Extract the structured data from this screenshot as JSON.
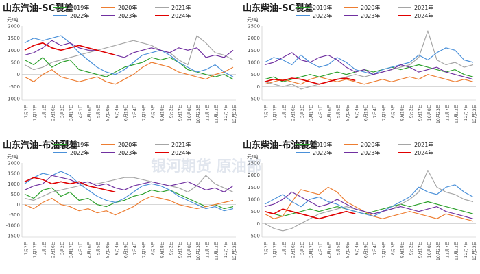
{
  "colors": {
    "2019": "#2ca02c",
    "2020": "#ed7d31",
    "2021": "#a5a5a5",
    "2022": "#4a90d9",
    "2023": "#7030a0",
    "2024": "#e00000"
  },
  "watermark": "银河期货 原油部",
  "chart_data": [
    {
      "type": "line",
      "title": "山东汽油-SC裂差",
      "ylabel": "元/吨",
      "ylim": [
        -1000,
        2000
      ],
      "yticks": [
        "2000",
        "1500",
        "1000",
        "500",
        "0",
        "-500",
        "-1000"
      ],
      "xticks": [
        "1月2日",
        "1月17日",
        "2月1日",
        "2月16日",
        "3月2日",
        "3月17日",
        "4月1日",
        "4月16日",
        "5月5日",
        "5月20日",
        "6月4日",
        "6月19日",
        "7月4日",
        "7月19日",
        "8月3日",
        "8月18日",
        "9月2日",
        "9月17日",
        "10月8日",
        "10月23日",
        "11月7日",
        "11月22日",
        "12月7日",
        "12月22日"
      ],
      "series": [
        {
          "name": "2019年",
          "values": [
            600,
            400,
            700,
            300,
            500,
            600,
            200,
            100,
            0,
            -100,
            100,
            300,
            400,
            500,
            700,
            600,
            700,
            500,
            200,
            100,
            0,
            -100,
            0,
            -200
          ]
        },
        {
          "name": "2020年",
          "values": [
            -100,
            -300,
            0,
            200,
            -100,
            -200,
            -300,
            -200,
            -100,
            -300,
            -400,
            -200,
            0,
            300,
            500,
            400,
            300,
            100,
            0,
            -100,
            -200,
            0,
            100,
            300
          ]
        },
        {
          "name": "2021年",
          "values": [
            400,
            200,
            300,
            500,
            600,
            700,
            800,
            900,
            1000,
            1100,
            1200,
            1300,
            1400,
            1300,
            1200,
            1000,
            900,
            600,
            400,
            1600,
            1300,
            900,
            800,
            600
          ]
        },
        {
          "name": "2022年",
          "values": [
            1300,
            1500,
            1400,
            1500,
            1600,
            1300,
            900,
            600,
            300,
            100,
            0,
            200,
            500,
            800,
            900,
            1000,
            800,
            500,
            300,
            100,
            200,
            400,
            100,
            -100
          ]
        },
        {
          "name": "2023年",
          "values": [
            800,
            900,
            1100,
            1400,
            1200,
            1300,
            1100,
            1000,
            1000,
            900,
            800,
            700,
            900,
            1000,
            1100,
            1000,
            900,
            1100,
            1000,
            1100,
            700,
            800,
            700,
            1000
          ]
        },
        {
          "name": "2024年",
          "values": [
            1000,
            1200,
            1300,
            1100,
            1000,
            1100,
            1200,
            1100,
            1000,
            900,
            800
          ]
        }
      ]
    },
    {
      "type": "line",
      "title": "山东柴油-SC裂差",
      "ylabel": "元/吨",
      "ylim": [
        -500,
        2500
      ],
      "yticks": [
        "2500",
        "2000",
        "1500",
        "1000",
        "500",
        "0",
        "-500"
      ],
      "xticks": [
        "1月2日",
        "1月17日",
        "2月1日",
        "2月16日",
        "3月2日",
        "3月17日",
        "4月1日",
        "4月16日",
        "5月5日",
        "5月20日",
        "6月4日",
        "6月19日",
        "7月4日",
        "7月19日",
        "8月3日",
        "8月18日",
        "9月2日",
        "9月17日",
        "10月8日",
        "10月23日",
        "11月7日",
        "11月22日",
        "12月7日",
        "12月22日"
      ],
      "series": [
        {
          "name": "2019年",
          "values": [
            300,
            400,
            200,
            300,
            400,
            500,
            400,
            500,
            600,
            500,
            600,
            700,
            600,
            700,
            800,
            700,
            800,
            900,
            800,
            700,
            600,
            700,
            500,
            400
          ]
        },
        {
          "name": "2020年",
          "values": [
            100,
            200,
            300,
            200,
            100,
            300,
            400,
            300,
            200,
            300,
            200,
            100,
            200,
            300,
            200,
            300,
            400,
            300,
            500,
            400,
            300,
            200,
            300,
            200
          ]
        },
        {
          "name": "2021年",
          "values": [
            200,
            100,
            0,
            100,
            -100,
            0,
            100,
            200,
            300,
            400,
            500,
            400,
            500,
            600,
            700,
            800,
            900,
            1200,
            2300,
            1100,
            900,
            1000,
            800,
            900
          ]
        },
        {
          "name": "2022年",
          "values": [
            1000,
            1200,
            1100,
            900,
            1300,
            1000,
            800,
            900,
            1200,
            1000,
            700,
            600,
            500,
            700,
            800,
            900,
            1000,
            1300,
            1100,
            1400,
            1600,
            1500,
            1100,
            1000
          ]
        },
        {
          "name": "2023年",
          "values": [
            900,
            1000,
            1200,
            1400,
            1100,
            1000,
            1200,
            1300,
            1100,
            800,
            600,
            700,
            500,
            600,
            700,
            900,
            800,
            600,
            700,
            800,
            600,
            500,
            400,
            300
          ]
        },
        {
          "name": "2024年",
          "values": [
            200,
            300,
            250,
            350,
            300,
            200,
            100,
            200,
            300,
            350,
            250
          ]
        }
      ]
    },
    {
      "type": "line",
      "title": "山东汽油-布油裂差",
      "ylabel": "元/吨",
      "ylim": [
        -1500,
        2000
      ],
      "yticks": [
        "2000",
        "1500",
        "1000",
        "500",
        "0",
        "-500",
        "-1000",
        "-1500"
      ],
      "xticks": [
        "1月2日",
        "1月17日",
        "2月1日",
        "2月16日",
        "3月2日",
        "3月17日",
        "4月1日",
        "4月16日",
        "5月5日",
        "5月20日",
        "6月4日",
        "6月19日",
        "7月4日",
        "7月19日",
        "8月3日",
        "8月18日",
        "9月2日",
        "9月17日",
        "10月8日",
        "10月23日",
        "11月7日",
        "11月22日",
        "12月7日",
        "12月22日"
      ],
      "series": [
        {
          "name": "2019年",
          "values": [
            500,
            300,
            700,
            800,
            400,
            600,
            200,
            300,
            0,
            -100,
            100,
            200,
            400,
            500,
            700,
            600,
            700,
            500,
            300,
            100,
            -100,
            0,
            -200,
            -100
          ]
        },
        {
          "name": "2020年",
          "values": [
            0,
            -200,
            100,
            300,
            0,
            -100,
            -300,
            -200,
            -400,
            -300,
            -500,
            -300,
            -100,
            200,
            400,
            300,
            200,
            0,
            -100,
            -200,
            -100,
            0,
            100,
            200
          ]
        },
        {
          "name": "2021年",
          "values": [
            300,
            200,
            400,
            600,
            700,
            800,
            900,
            1000,
            1000,
            1100,
            1200,
            1300,
            1300,
            1200,
            1100,
            1000,
            900,
            800,
            600,
            900,
            1400,
            1000,
            800,
            600
          ]
        },
        {
          "name": "2022年",
          "values": [
            1000,
            1300,
            1500,
            1400,
            1600,
            1400,
            1000,
            700,
            400,
            200,
            100,
            300,
            600,
            900,
            1000,
            900,
            700,
            400,
            200,
            0,
            -200,
            -100,
            -300,
            -200
          ]
        },
        {
          "name": "2023年",
          "values": [
            700,
            900,
            1000,
            1400,
            1300,
            1200,
            1000,
            1100,
            900,
            1000,
            800,
            700,
            900,
            1000,
            1100,
            1000,
            900,
            1000,
            1100,
            900,
            700,
            800,
            600,
            900
          ]
        },
        {
          "name": "2024年",
          "values": [
            1100,
            1300,
            1200,
            1000,
            1100,
            1000,
            1100,
            900,
            800,
            700,
            600
          ]
        }
      ]
    },
    {
      "type": "line",
      "title": "山东柴油-布油裂差",
      "ylabel": "元/吨",
      "ylim": [
        -500,
        2500
      ],
      "yticks": [
        "2500",
        "2000",
        "1500",
        "1000",
        "500",
        "0",
        "-500"
      ],
      "xticks": [
        "1月2日",
        "1月17日",
        "2月1日",
        "2月16日",
        "3月2日",
        "3月17日",
        "4月1日",
        "4月16日",
        "5月5日",
        "5月20日",
        "6月4日",
        "6月19日",
        "7月4日",
        "7月19日",
        "8月3日",
        "8月18日",
        "9月2日",
        "9月17日",
        "10月8日",
        "10月23日",
        "11月7日",
        "11月22日",
        "12月7日",
        "12月22日"
      ],
      "series": [
        {
          "name": "2019年",
          "values": [
            500,
            400,
            300,
            400,
            500,
            600,
            500,
            600,
            700,
            600,
            500,
            400,
            500,
            600,
            700,
            800,
            700,
            800,
            900,
            800,
            700,
            600,
            500,
            400
          ]
        },
        {
          "name": "2020年",
          "values": [
            400,
            200,
            300,
            900,
            1400,
            1300,
            1200,
            1500,
            1300,
            900,
            700,
            500,
            300,
            200,
            300,
            400,
            500,
            400,
            300,
            200,
            400,
            300,
            200,
            100
          ]
        },
        {
          "name": "2021年",
          "values": [
            0,
            -200,
            -300,
            -200,
            0,
            200,
            400,
            500,
            600,
            700,
            600,
            500,
            400,
            500,
            600,
            800,
            1000,
            1300,
            2200,
            1500,
            1300,
            1200,
            1000,
            900
          ]
        },
        {
          "name": "2022年",
          "values": [
            800,
            1000,
            1200,
            900,
            700,
            1000,
            1100,
            900,
            800,
            600,
            500,
            400,
            300,
            500,
            700,
            900,
            1100,
            1500,
            1300,
            1200,
            1500,
            1600,
            1300,
            1100
          ]
        },
        {
          "name": "2023年",
          "values": [
            700,
            800,
            1000,
            1300,
            1100,
            900,
            700,
            800,
            1000,
            800,
            600,
            500,
            400,
            500,
            600,
            700,
            600,
            500,
            600,
            700,
            500,
            400,
            300,
            200
          ]
        },
        {
          "name": "2024年",
          "values": [
            500,
            400,
            600,
            500,
            400,
            300,
            200,
            300,
            400,
            500,
            400
          ]
        }
      ]
    }
  ]
}
